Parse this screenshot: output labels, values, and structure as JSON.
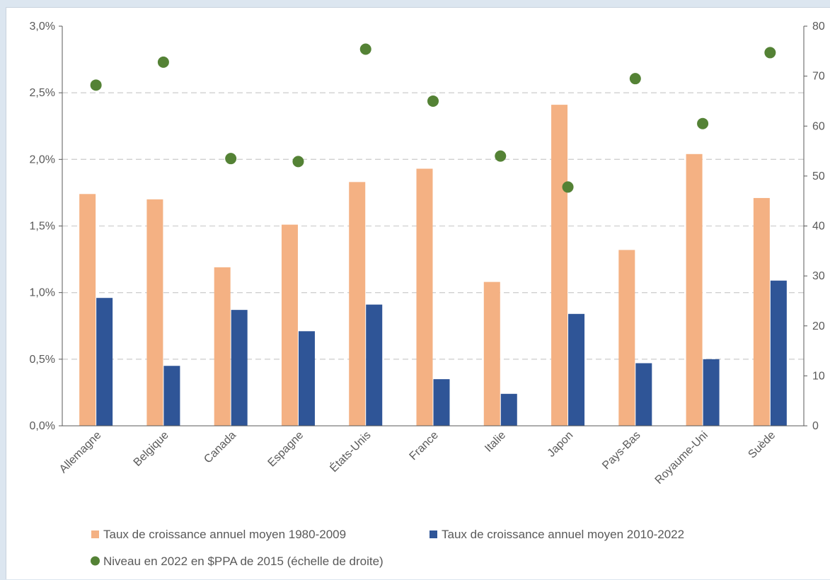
{
  "chart_data": {
    "type": "bar",
    "categories": [
      "Allemagne",
      "Belgique",
      "Canada",
      "Espagne",
      "États-Unis",
      "France",
      "Italie",
      "Japon",
      "Pays-Bas",
      "Royaume-Uni",
      "Suède"
    ],
    "series": [
      {
        "name": "Taux de croissance annuel moyen 1980-2009",
        "axis": "left",
        "kind": "bar",
        "color": "#f4b183",
        "values": [
          1.74,
          1.7,
          1.19,
          1.51,
          1.83,
          1.93,
          1.08,
          2.41,
          1.32,
          2.04,
          1.71
        ]
      },
      {
        "name": "Taux de croissance annuel moyen 2010-2022",
        "axis": "left",
        "kind": "bar",
        "color": "#2f5597",
        "values": [
          0.96,
          0.45,
          0.87,
          0.71,
          0.91,
          0.35,
          0.24,
          0.84,
          0.47,
          0.5,
          1.09
        ]
      },
      {
        "name": "Niveau en 2022 en $PPA de 2015 (échelle de droite)",
        "axis": "right",
        "kind": "scatter",
        "color": "#548235",
        "values": [
          68.2,
          72.8,
          53.5,
          52.9,
          75.4,
          65.0,
          54.0,
          47.8,
          69.5,
          60.5,
          74.7
        ]
      }
    ],
    "y_left": {
      "min": 0,
      "max": 3.0,
      "ticks": [
        0,
        0.5,
        1.0,
        1.5,
        2.0,
        2.5,
        3.0
      ],
      "tick_labels": [
        "0,0%",
        "0,5%",
        "1,0%",
        "1,5%",
        "2,0%",
        "2,5%",
        "3,0%"
      ]
    },
    "y_right": {
      "min": 0,
      "max": 80,
      "ticks": [
        0,
        10,
        20,
        30,
        40,
        50,
        60,
        70,
        80
      ],
      "tick_labels": [
        "0",
        "10",
        "20",
        "30",
        "40",
        "50",
        "60",
        "70",
        "80"
      ]
    },
    "grid": "horizontal-dashed",
    "legend_position": "bottom"
  }
}
